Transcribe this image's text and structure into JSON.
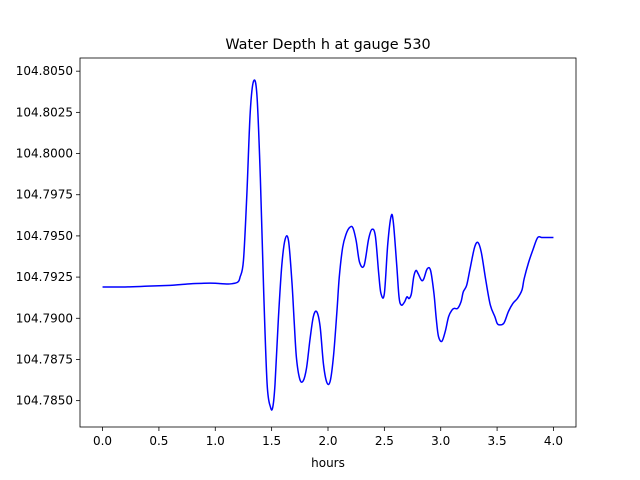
{
  "chart_data": {
    "type": "line",
    "title": "Water Depth h at gauge 530",
    "xlabel": "hours",
    "ylabel": "",
    "xlim": [
      -0.2,
      4.2
    ],
    "ylim": [
      104.7834,
      104.8058
    ],
    "x_ticks": [
      0.0,
      0.5,
      1.0,
      1.5,
      2.0,
      2.5,
      3.0,
      3.5,
      4.0
    ],
    "x_tick_labels": [
      "0.0",
      "0.5",
      "1.0",
      "1.5",
      "2.0",
      "2.5",
      "3.0",
      "3.5",
      "4.0"
    ],
    "y_ticks": [
      104.785,
      104.7875,
      104.79,
      104.7925,
      104.795,
      104.7975,
      104.8,
      104.8025,
      104.805
    ],
    "y_tick_labels": [
      "104.7850",
      "104.7875",
      "104.7900",
      "104.7925",
      "104.7950",
      "104.7975",
      "104.8000",
      "104.8025",
      "104.8050"
    ],
    "grid": false,
    "legend": "none",
    "series": [
      {
        "color": "#0000ff",
        "x": [
          0.0,
          0.2,
          0.4,
          0.6,
          0.7,
          0.8,
          0.9,
          1.0,
          1.05,
          1.1,
          1.15,
          1.2,
          1.22,
          1.25,
          1.28,
          1.31,
          1.34,
          1.37,
          1.4,
          1.43,
          1.46,
          1.49,
          1.51,
          1.53,
          1.56,
          1.59,
          1.62,
          1.65,
          1.68,
          1.7,
          1.72,
          1.75,
          1.78,
          1.81,
          1.84,
          1.87,
          1.9,
          1.93,
          1.96,
          1.99,
          2.02,
          2.05,
          2.08,
          2.1,
          2.13,
          2.16,
          2.19,
          2.22,
          2.25,
          2.28,
          2.32,
          2.36,
          2.39,
          2.42,
          2.45,
          2.47,
          2.5,
          2.53,
          2.56,
          2.58,
          2.61,
          2.63,
          2.65,
          2.68,
          2.7,
          2.72,
          2.74,
          2.76,
          2.78,
          2.8,
          2.83,
          2.85,
          2.88,
          2.91,
          2.94,
          2.96,
          2.98,
          3.01,
          3.04,
          3.07,
          3.1,
          3.12,
          3.15,
          3.18,
          3.2,
          3.23,
          3.26,
          3.3,
          3.33,
          3.36,
          3.4,
          3.44,
          3.48,
          3.5,
          3.52,
          3.56,
          3.6,
          3.64,
          3.68,
          3.72,
          3.74,
          3.78,
          3.82,
          3.86,
          3.9,
          3.94,
          3.97,
          4.0
        ],
        "y": [
          104.7919,
          104.7919,
          104.79195,
          104.792,
          104.79205,
          104.7921,
          104.79213,
          104.79213,
          104.7921,
          104.79208,
          104.7921,
          104.7922,
          104.7925,
          104.7935,
          104.7975,
          104.8025,
          104.8044,
          104.8035,
          104.7985,
          104.7915,
          104.786,
          104.7846,
          104.7846,
          104.786,
          104.79,
          104.7932,
          104.7948,
          104.7947,
          104.7922,
          104.7898,
          104.7876,
          104.7863,
          104.7862,
          104.787,
          104.7887,
          104.7901,
          104.7904,
          104.7895,
          104.7872,
          104.7861,
          104.7862,
          104.7878,
          104.7905,
          104.7925,
          104.7943,
          104.7951,
          104.7955,
          104.7955,
          104.7947,
          104.7934,
          104.7932,
          104.7948,
          104.7954,
          104.795,
          104.7927,
          104.7915,
          104.7915,
          104.7945,
          104.7962,
          104.7958,
          104.7932,
          104.7913,
          104.7908,
          104.791,
          104.7913,
          104.7912,
          104.7915,
          104.7925,
          104.7929,
          104.7927,
          104.7923,
          104.7924,
          104.793,
          104.7929,
          104.7915,
          104.79,
          104.7889,
          104.7886,
          104.7892,
          104.7901,
          104.7905,
          104.7906,
          104.7906,
          104.791,
          104.7916,
          104.792,
          104.793,
          104.7943,
          104.7946,
          104.794,
          104.7923,
          104.7908,
          104.7901,
          104.7897,
          104.7896,
          104.7897,
          104.7904,
          104.7909,
          104.7912,
          104.7917,
          104.7924,
          104.7934,
          104.7942,
          104.7949,
          104.7949,
          104.7949,
          104.7949,
          104.7949
        ]
      }
    ]
  }
}
